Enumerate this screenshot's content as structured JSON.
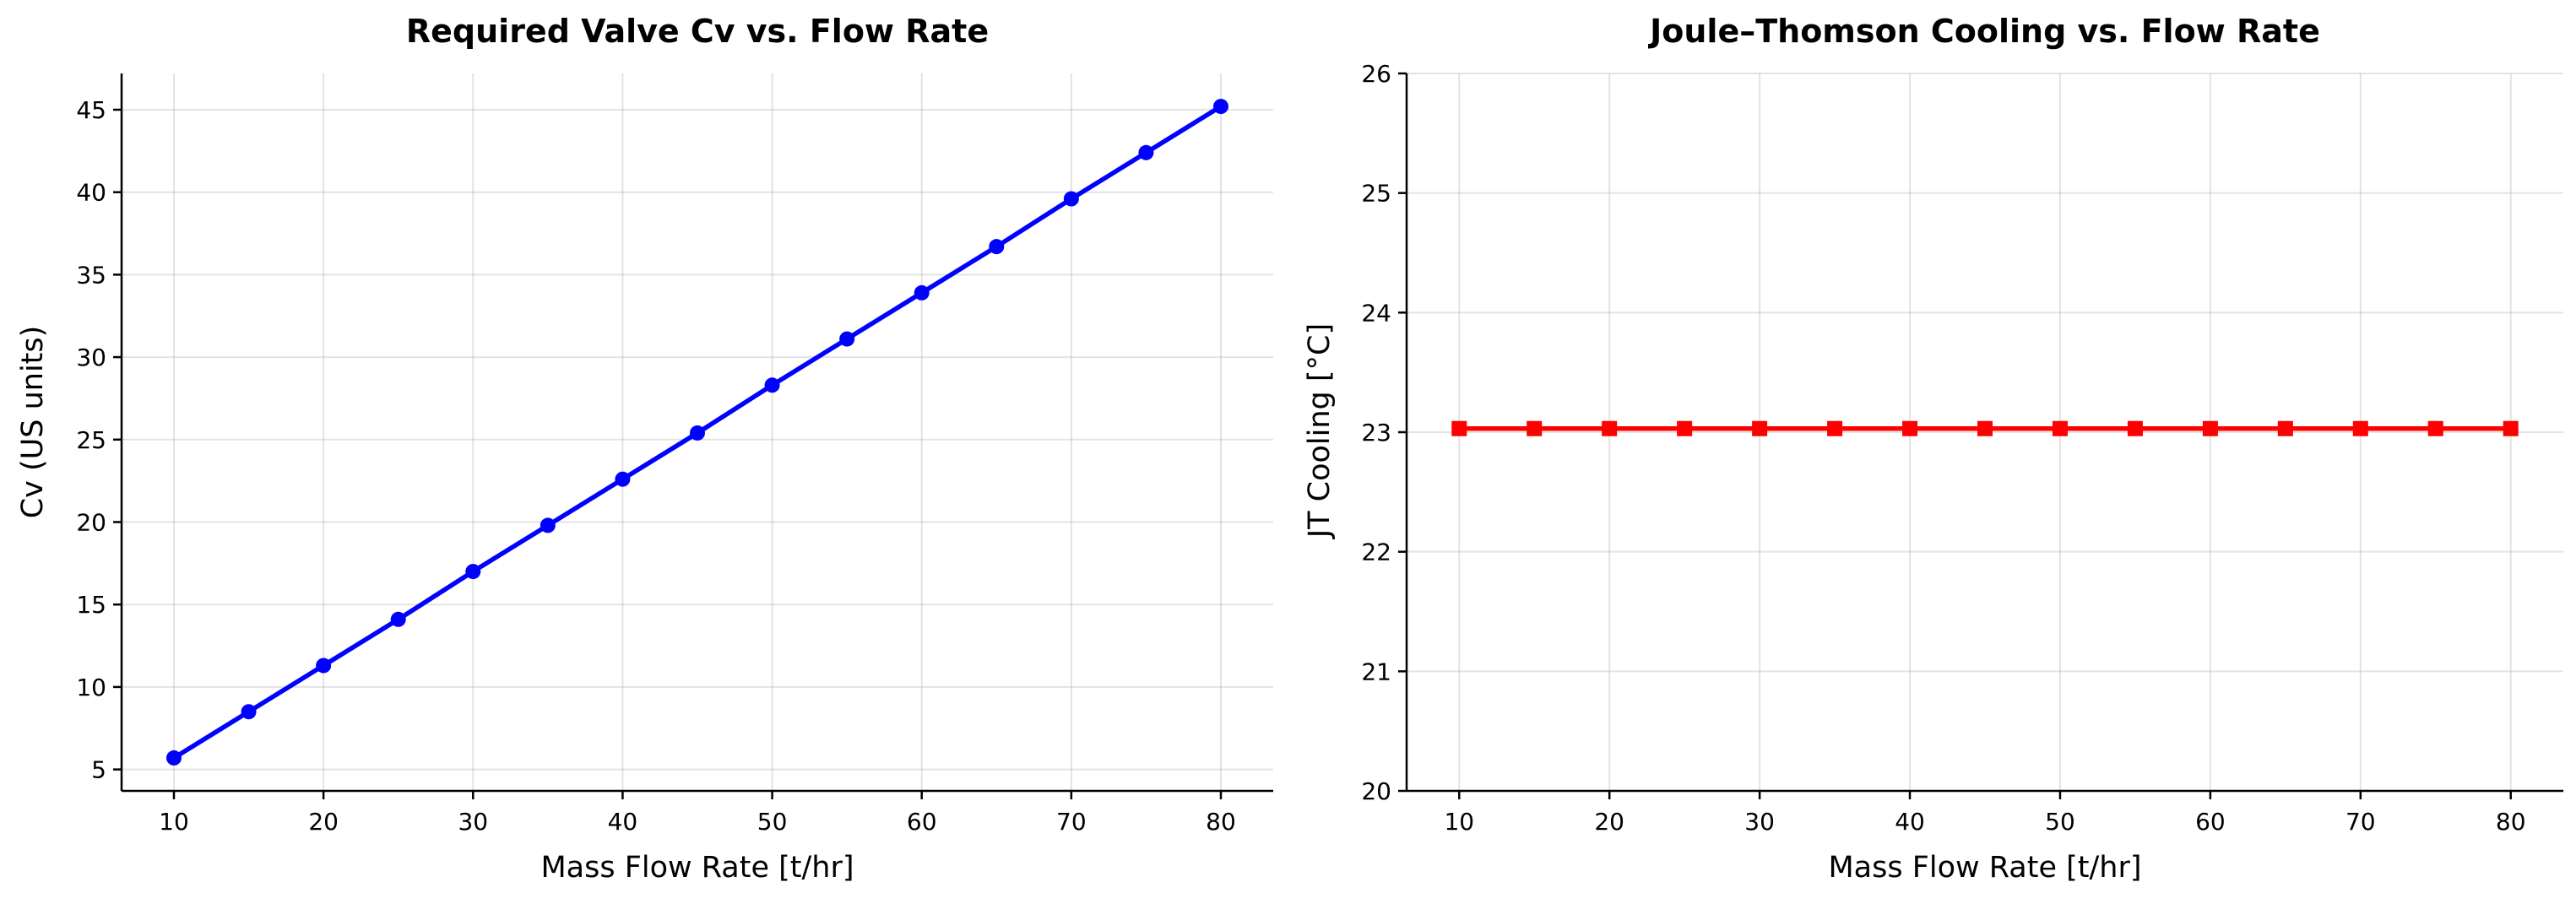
{
  "chart_data": [
    {
      "type": "line",
      "title": "Required Valve Cv vs. Flow Rate",
      "xlabel": "Mass Flow Rate [t/hr]",
      "ylabel": "Cv (US units)",
      "xlim": [
        6.5,
        83.5
      ],
      "ylim": [
        3.7,
        47.2
      ],
      "xticks": [
        10,
        20,
        30,
        40,
        50,
        60,
        70,
        80
      ],
      "yticks": [
        5,
        10,
        15,
        20,
        25,
        30,
        35,
        40,
        45
      ],
      "grid": true,
      "marker": "circle",
      "color": "#0000ff",
      "series": [
        {
          "x": [
            10,
            15,
            20,
            25,
            30,
            35,
            40,
            45,
            50,
            55,
            60,
            65,
            70,
            75,
            80
          ],
          "values": [
            5.7,
            8.5,
            11.3,
            14.1,
            17.0,
            19.8,
            22.6,
            25.4,
            28.3,
            31.1,
            33.9,
            36.7,
            39.6,
            42.4,
            45.2
          ]
        }
      ]
    },
    {
      "type": "line",
      "title": "Joule–Thomson Cooling vs. Flow Rate",
      "xlabel": "Mass Flow Rate [t/hr]",
      "ylabel": "JT Cooling [°C]",
      "xlim": [
        6.5,
        83.5
      ],
      "ylim": [
        20,
        26
      ],
      "xticks": [
        10,
        20,
        30,
        40,
        50,
        60,
        70,
        80
      ],
      "yticks": [
        20,
        21,
        22,
        23,
        24,
        25,
        26
      ],
      "grid": true,
      "marker": "square",
      "color": "#ff0000",
      "series": [
        {
          "x": [
            10,
            15,
            20,
            25,
            30,
            35,
            40,
            45,
            50,
            55,
            60,
            65,
            70,
            75,
            80
          ],
          "values": [
            23.03,
            23.03,
            23.03,
            23.03,
            23.03,
            23.03,
            23.03,
            23.03,
            23.03,
            23.03,
            23.03,
            23.03,
            23.03,
            23.03,
            23.03
          ]
        }
      ]
    }
  ]
}
